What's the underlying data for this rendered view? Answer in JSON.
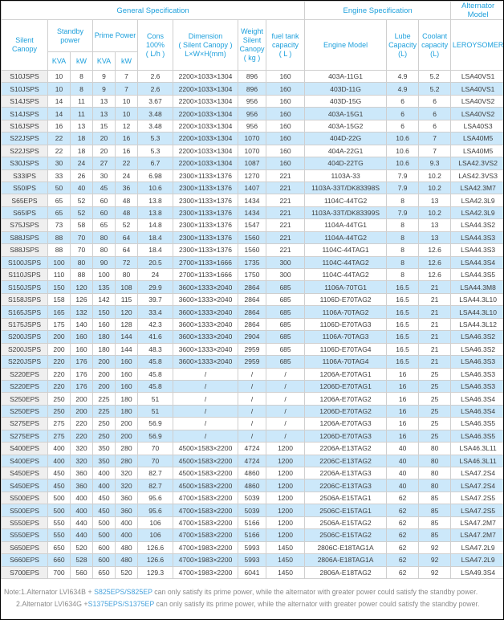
{
  "palette": {
    "header_text": "#1ea0dc",
    "model_link_text": "#25b0e8",
    "alt_row_bg": "#cce8fa",
    "model_col_bg": "#efefef",
    "border": "#cfcfcf",
    "note_text": "#8a8a8a",
    "note_model_text": "#4aa3dc"
  },
  "header": {
    "general": "General Specification",
    "engine_spec": "Engine Specification",
    "alternator_model": "Alternator Model",
    "silent_canopy": "Silent\nCanopy",
    "standby_power": "Standby\npower",
    "prime_power": "Prime Power",
    "cons": "Cons\n100%\n( L/h )",
    "dimension": "Dimension\n( Silent Canopy )\nL×W×H(mm)",
    "weight": "Weight\nSilent\nCanopy\n( kg )",
    "fuel_tank": "fuel tank\ncapacity\n( L )",
    "engine_model": "Engine Model",
    "lube": "Lube\nCapacity\n(L)",
    "coolant": "Coolant\ncapacity\n(L)",
    "leroysomer": "LEROYSOMER",
    "kva1": "KVA",
    "kw1": "kW",
    "kva2": "KVA",
    "kw2": "kW"
  },
  "table": {
    "columns": [
      "Silent Canopy",
      "Standby KVA",
      "Standby kW",
      "Prime KVA",
      "Prime kW",
      "Cons 100% (L/h)",
      "Dimension L×W×H(mm)",
      "Weight (kg)",
      "Fuel tank (L)",
      "Engine Model",
      "Lube Capacity (L)",
      "Coolant capacity (L)",
      "LEROYSOMER"
    ],
    "rows": [
      [
        "S10JSPS",
        "10",
        "8",
        "9",
        "7",
        "2.6",
        "2200×1033×1304",
        "896",
        "160",
        "403A-11G1",
        "4.9",
        "5.2",
        "LSA40VS1"
      ],
      [
        "S10JSPS",
        "10",
        "8",
        "9",
        "7",
        "2.6",
        "2200×1033×1304",
        "896",
        "160",
        "403D-11G",
        "4.9",
        "5.2",
        "LSA40VS1"
      ],
      [
        "S14JSPS",
        "14",
        "11",
        "13",
        "10",
        "3.67",
        "2200×1033×1304",
        "956",
        "160",
        "403D-15G",
        "6",
        "6",
        "LSA40VS2"
      ],
      [
        "S14JSPS",
        "14",
        "11",
        "13",
        "10",
        "3.48",
        "2200×1033×1304",
        "956",
        "160",
        "403A-15G1",
        "6",
        "6",
        "LSA40VS2"
      ],
      [
        "S16JSPS",
        "16",
        "13",
        "15",
        "12",
        "3.48",
        "2200×1033×1304",
        "956",
        "160",
        "403A-15G2",
        "6",
        "6",
        "LSA40S3"
      ],
      [
        "S22JSPS",
        "22",
        "18",
        "20",
        "16",
        "5.3",
        "2200×1033×1304",
        "1070",
        "160",
        "404D-22G",
        "10.6",
        "7",
        "LSA40M5"
      ],
      [
        "S22JSPS",
        "22",
        "18",
        "20",
        "16",
        "5.3",
        "2200×1033×1304",
        "1070",
        "160",
        "404A-22G1",
        "10.6",
        "7",
        "LSA40M5"
      ],
      [
        "S30JSPS",
        "30",
        "24",
        "27",
        "22",
        "6.7",
        "2200×1033×1304",
        "1087",
        "160",
        "404D-22TG",
        "10.6",
        "9.3",
        "LSA42.3VS2"
      ],
      [
        "S33IPS",
        "33",
        "26",
        "30",
        "24",
        "6.98",
        "2300×1133×1376",
        "1270",
        "221",
        "1103A-33",
        "7.9",
        "10.2",
        "LAS42.3VS3"
      ],
      [
        "S50IPS",
        "50",
        "40",
        "45",
        "36",
        "10.6",
        "2300×1133×1376",
        "1407",
        "221",
        "1103A-33T/DK83398S",
        "7.9",
        "10.2",
        "LSA42.3M7"
      ],
      [
        "S65EPS",
        "65",
        "52",
        "60",
        "48",
        "13.8",
        "2300×1133×1376",
        "1434",
        "221",
        "1104C-44TG2",
        "8",
        "13",
        "LSA42.3L9"
      ],
      [
        "S65IPS",
        "65",
        "52",
        "60",
        "48",
        "13.8",
        "2300×1133×1376",
        "1434",
        "221",
        "1103A-33T/DK83399S",
        "7.9",
        "10.2",
        "LSA42.3L9"
      ],
      [
        "S75JSPS",
        "73",
        "58",
        "65",
        "52",
        "14.8",
        "2300×1133×1376",
        "1547",
        "221",
        "1104A-44TG1",
        "8",
        "13",
        "LSA44.3S2"
      ],
      [
        "S88JSPS",
        "88",
        "70",
        "80",
        "64",
        "18.4",
        "2300×1133×1376",
        "1560",
        "221",
        "1104A-44TG2",
        "8",
        "13",
        "LSA44.3S3"
      ],
      [
        "S88JSPS",
        "88",
        "70",
        "80",
        "64",
        "18.4",
        "2300×1133×1376",
        "1560",
        "221",
        "1104C-44TAG1",
        "8",
        "12.6",
        "LSA44.3S3"
      ],
      [
        "S100JSPS",
        "100",
        "80",
        "90",
        "72",
        "20.5",
        "2700×1133×1666",
        "1735",
        "300",
        "1104C-44TAG2",
        "8",
        "12.6",
        "LSA44.3S4"
      ],
      [
        "S110JSPS",
        "110",
        "88",
        "100",
        "80",
        "24",
        "2700×1133×1666",
        "1750",
        "300",
        "1104C-44TAG2",
        "8",
        "12.6",
        "LSA44.3S5"
      ],
      [
        "S150JSPS",
        "150",
        "120",
        "135",
        "108",
        "29.9",
        "3600×1333×2040",
        "2864",
        "685",
        "1106A-70TG1",
        "16.5",
        "21",
        "LSA44.3M8"
      ],
      [
        "S158JSPS",
        "158",
        "126",
        "142",
        "115",
        "39.7",
        "3600×1333×2040",
        "2864",
        "685",
        "1106D-E70TAG2",
        "16.5",
        "21",
        "LSA44.3L10"
      ],
      [
        "S165JSPS",
        "165",
        "132",
        "150",
        "120",
        "33.4",
        "3600×1333×2040",
        "2864",
        "685",
        "1106A-70TAG2",
        "16.5",
        "21",
        "LSA44.3L10"
      ],
      [
        "S175JSPS",
        "175",
        "140",
        "160",
        "128",
        "42.3",
        "3600×1333×2040",
        "2864",
        "685",
        "1106D-E70TAG3",
        "16.5",
        "21",
        "LSA44.3L12"
      ],
      [
        "S200JSPS",
        "200",
        "160",
        "180",
        "144",
        "41.6",
        "3600×1333×2040",
        "2904",
        "685",
        "1106A-70TAG3",
        "16.5",
        "21",
        "LSA46.3S2"
      ],
      [
        "S200JSPS",
        "200",
        "160",
        "180",
        "144",
        "48.3",
        "3600×1333×2040",
        "2959",
        "685",
        "1106D-E70TAG4",
        "16.5",
        "21",
        "LSA46.3S2"
      ],
      [
        "S220JSPS",
        "220",
        "176",
        "200",
        "160",
        "45.8",
        "3600×1333×2040",
        "2959",
        "685",
        "1106A-70TAG4",
        "16.5",
        "21",
        "LSA46.3S3"
      ],
      [
        "S220EPS",
        "220",
        "176",
        "200",
        "160",
        "45.8",
        "/",
        "/",
        "/",
        "1206A-E70TAG1",
        "16",
        "25",
        "LSA46.3S3"
      ],
      [
        "S220EPS",
        "220",
        "176",
        "200",
        "160",
        "45.8",
        "/",
        "/",
        "/",
        "1206D-E70TAG1",
        "16",
        "25",
        "LSA46.3S3"
      ],
      [
        "S250EPS",
        "250",
        "200",
        "225",
        "180",
        "51",
        "/",
        "/",
        "/",
        "1206A-E70TAG2",
        "16",
        "25",
        "LSA46.3S4"
      ],
      [
        "S250EPS",
        "250",
        "200",
        "225",
        "180",
        "51",
        "/",
        "/",
        "/",
        "1206D-E70TAG2",
        "16",
        "25",
        "LSA46.3S4"
      ],
      [
        "S275EPS",
        "275",
        "220",
        "250",
        "200",
        "56.9",
        "/",
        "/",
        "/",
        "1206A-E70TAG3",
        "16",
        "25",
        "LSA46.3S5"
      ],
      [
        "S275EPS",
        "275",
        "220",
        "250",
        "200",
        "56.9",
        "/",
        "/",
        "/",
        "1206D-E70TAG3",
        "16",
        "25",
        "LSA46.3S5"
      ],
      [
        "S400EPS",
        "400",
        "320",
        "350",
        "280",
        "70",
        "4500×1583×2200",
        "4724",
        "1200",
        "2206A-E13TAG2",
        "40",
        "80",
        "LSA46.3L11"
      ],
      [
        "S400EPS",
        "400",
        "320",
        "350",
        "280",
        "70",
        "4500×1583×2200",
        "4724",
        "1200",
        "2206C-E13TAG2",
        "40",
        "80",
        "LSA46.3L11"
      ],
      [
        "S450EPS",
        "450",
        "360",
        "400",
        "320",
        "82.7",
        "4500×1583×2200",
        "4860",
        "1200",
        "2206A-E13TAG3",
        "40",
        "80",
        "LSA47.2S4"
      ],
      [
        "S450EPS",
        "450",
        "360",
        "400",
        "320",
        "82.7",
        "4500×1583×2200",
        "4860",
        "1200",
        "2206C-E13TAG3",
        "40",
        "80",
        "LSA47.2S4"
      ],
      [
        "S500EPS",
        "500",
        "400",
        "450",
        "360",
        "95.6",
        "4700×1583×2200",
        "5039",
        "1200",
        "2506A-E15TAG1",
        "62",
        "85",
        "LSA47.2S5"
      ],
      [
        "S500EPS",
        "500",
        "400",
        "450",
        "360",
        "95.6",
        "4700×1583×2200",
        "5039",
        "1200",
        "2506C-E15TAG1",
        "62",
        "85",
        "LSA47.2S5"
      ],
      [
        "S550EPS",
        "550",
        "440",
        "500",
        "400",
        "106",
        "4700×1583×2200",
        "5166",
        "1200",
        "2506A-E15TAG2",
        "62",
        "85",
        "LSA47.2M7"
      ],
      [
        "S550EPS",
        "550",
        "440",
        "500",
        "400",
        "106",
        "4700×1583×2200",
        "5166",
        "1200",
        "2506C-E15TAG2",
        "62",
        "85",
        "LSA47.2M7"
      ],
      [
        "S650EPS",
        "650",
        "520",
        "600",
        "480",
        "126.6",
        "4700×1983×2200",
        "5993",
        "1450",
        "2806C-E18TAG1A",
        "62",
        "92",
        "LSA47.2L9"
      ],
      [
        "S660EPS",
        "660",
        "528",
        "600",
        "480",
        "126.6",
        "4700×1983×2200",
        "5993",
        "1450",
        "2806A-E18TAG1A",
        "62",
        "92",
        "LSA47.2L9"
      ],
      [
        "S700EPS",
        "700",
        "560",
        "650",
        "520",
        "129.3",
        "4700×1983×2200",
        "6041",
        "1450",
        "2806A-E18TAG2",
        "62",
        "92",
        "LSA49.3S4"
      ]
    ]
  },
  "notes": [
    {
      "pre": "Note:1.Alternator LVI634B + ",
      "em": "S825EPS/S825EP",
      "post": " can only satisfy its prime power, while the alternator with greater power could satisfy the standby power."
    },
    {
      "pre": "2.Alternator LVI634G +",
      "em": "S1375EPS/S1375EP",
      "post": " can only satisfy its prime power, while the alternator with greater power could satisfy the standby power."
    }
  ]
}
